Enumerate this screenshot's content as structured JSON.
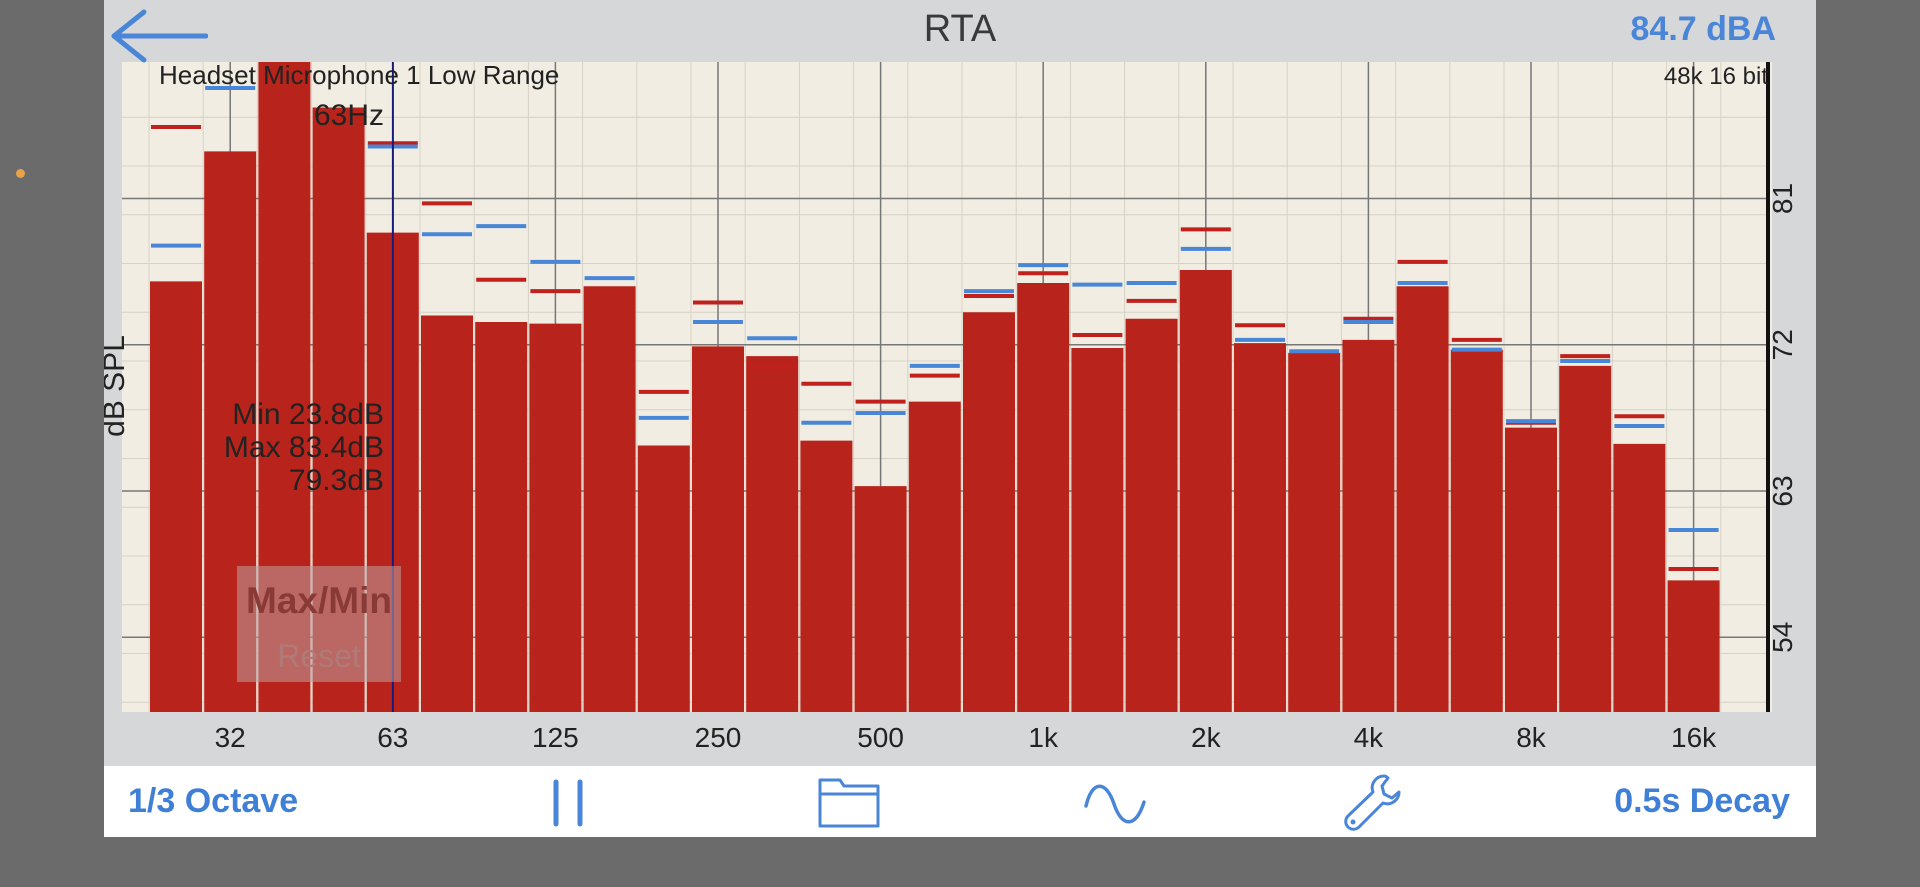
{
  "header": {
    "title": "RTA",
    "level": "84.7 dBA"
  },
  "chart_info": {
    "device": "Headset Microphone 1 Low Range",
    "format": "48k 16 bit",
    "cursor_label": "63Hz",
    "min_text": "Min 23.8dB",
    "max_text": "Max 83.4dB",
    "current_text": "79.3dB"
  },
  "maxmin_button": {
    "title": "Max/Min",
    "reset": "Reset"
  },
  "toolbar": {
    "resolution": "1/3 Octave",
    "decay": "0.5s Decay"
  },
  "colors": {
    "bar": "#b8241b",
    "max_marker": "#c0211d",
    "avg_marker": "#4a86d8",
    "plot_bg": "#f1ede2",
    "accent": "#3f7fd6"
  },
  "chart_data": {
    "type": "bar",
    "ylabel": "dB SPL",
    "yticks": [
      54,
      63,
      72,
      81
    ],
    "ylim": [
      49.4,
      89.4
    ],
    "xticks": [
      "32",
      "63",
      "125",
      "250",
      "500",
      "1k",
      "2k",
      "4k",
      "8k",
      "16k"
    ],
    "cursor_band": 4.5,
    "bars": [
      75.9,
      83.9,
      89.4,
      86.6,
      78.9,
      73.8,
      73.4,
      73.3,
      75.6,
      65.8,
      71.9,
      71.3,
      66.1,
      63.3,
      68.5,
      74.0,
      75.8,
      71.8,
      73.6,
      76.6,
      72.1,
      71.5,
      72.3,
      75.6,
      71.7,
      66.9,
      70.7,
      65.9,
      57.5
    ],
    "red_marks": [
      85.4,
      null,
      null,
      null,
      84.4,
      80.7,
      76.0,
      75.3,
      null,
      69.1,
      74.6,
      70.6,
      69.6,
      68.5,
      70.1,
      75.0,
      76.4,
      72.6,
      74.7,
      79.1,
      73.2,
      null,
      73.6,
      77.1,
      72.3,
      67.2,
      71.3,
      67.6,
      58.2
    ],
    "blue_marks": [
      78.1,
      87.8,
      null,
      null,
      84.2,
      78.8,
      79.3,
      77.1,
      76.1,
      67.5,
      73.4,
      72.4,
      67.2,
      67.8,
      70.7,
      75.3,
      76.9,
      75.7,
      75.8,
      77.9,
      72.3,
      71.6,
      73.4,
      75.8,
      71.7,
      67.3,
      71.0,
      67.0,
      60.6
    ]
  }
}
